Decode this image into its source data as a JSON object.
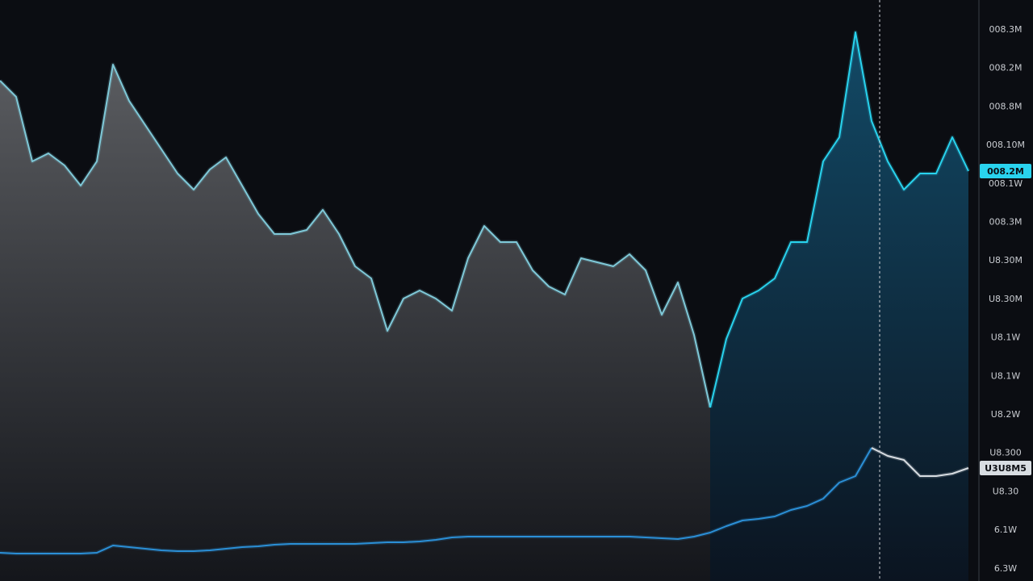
{
  "chart_data": {
    "type": "area",
    "categories": [
      null,
      null,
      null,
      null,
      null,
      null,
      null,
      null,
      null,
      null,
      null,
      null,
      null,
      null,
      null,
      null,
      null,
      null,
      null,
      null,
      null,
      null,
      null,
      null,
      null,
      null,
      null,
      null,
      null,
      null,
      null,
      null,
      null,
      null,
      null,
      null,
      null,
      null,
      null,
      null,
      null,
      null,
      null,
      null,
      null,
      null,
      null,
      null,
      null,
      null,
      null,
      null,
      null,
      null,
      null,
      null,
      null,
      null,
      null,
      null,
      null
    ],
    "ylim": [
      0,
      720
    ],
    "axis_labels": [
      "008.3M",
      "008.2M",
      "008.8M",
      "008.10M",
      "008.1W",
      "008.3M",
      "U8.30M",
      "U8.30M",
      "U8.1W",
      "U8.1W",
      "U8.2W",
      "U8.300",
      "U8.30",
      "6.1W",
      "6.3W"
    ],
    "series": [
      {
        "color": "#7fc9d8",
        "fill": "#5a5c60",
        "values": [
          620,
          600,
          520,
          530,
          515,
          490,
          520,
          640,
          595,
          565,
          535,
          505,
          485,
          510,
          525,
          490,
          455,
          430,
          430,
          435,
          460,
          430,
          390,
          375,
          310,
          350,
          360,
          350,
          335,
          400,
          440,
          420,
          420,
          385,
          365,
          355,
          400,
          395,
          390,
          405,
          385,
          330,
          370,
          305,
          215,
          null,
          null,
          null,
          null,
          null,
          null,
          null,
          null,
          null,
          null,
          null,
          null,
          null,
          null,
          null,
          null
        ]
      },
      {
        "color": "#29d3ee",
        "fill": "#0f4260",
        "values": [
          null,
          null,
          null,
          null,
          null,
          null,
          null,
          null,
          null,
          null,
          null,
          null,
          null,
          null,
          null,
          null,
          null,
          null,
          null,
          null,
          null,
          null,
          null,
          null,
          null,
          null,
          null,
          null,
          null,
          null,
          null,
          null,
          null,
          null,
          null,
          null,
          null,
          null,
          null,
          null,
          null,
          null,
          null,
          null,
          215,
          300,
          350,
          360,
          375,
          420,
          420,
          520,
          550,
          680,
          570,
          520,
          485,
          505,
          505,
          550,
          508
        ],
        "tag": "008.2M"
      },
      {
        "color": "#2b8fd6",
        "values": [
          35,
          34,
          34,
          34,
          34,
          34,
          35,
          44,
          42,
          40,
          38,
          37,
          37,
          38,
          40,
          42,
          43,
          45,
          46,
          46,
          46,
          46,
          46,
          47,
          48,
          48,
          49,
          51,
          54,
          55,
          55,
          55,
          55,
          55,
          55,
          55,
          55,
          55,
          55,
          55,
          54,
          53,
          52,
          55,
          60,
          68,
          75,
          77,
          80,
          88,
          93,
          102,
          122,
          130,
          165,
          null,
          null,
          null,
          null,
          null,
          null
        ]
      },
      {
        "color": "#d8dde2",
        "values": [
          null,
          null,
          null,
          null,
          null,
          null,
          null,
          null,
          null,
          null,
          null,
          null,
          null,
          null,
          null,
          null,
          null,
          null,
          null,
          null,
          null,
          null,
          null,
          null,
          null,
          null,
          null,
          null,
          null,
          null,
          null,
          null,
          null,
          null,
          null,
          null,
          null,
          null,
          null,
          null,
          null,
          null,
          null,
          null,
          null,
          null,
          null,
          null,
          null,
          null,
          null,
          null,
          null,
          null,
          165,
          155,
          150,
          130,
          130,
          133,
          140
        ],
        "tag": "U3U8M5"
      }
    ]
  }
}
